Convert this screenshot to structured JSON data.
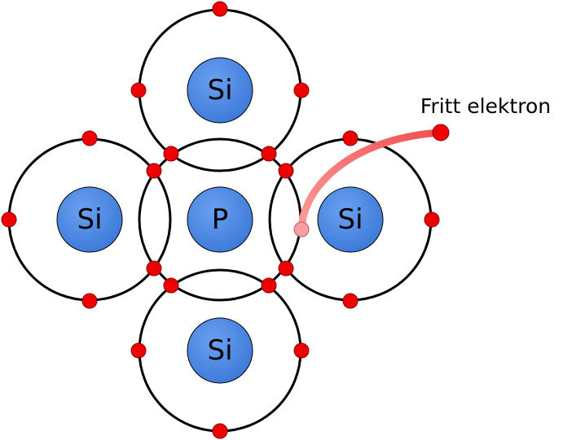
{
  "atoms": [
    {
      "id": "center",
      "symbol": "P"
    },
    {
      "id": "top",
      "symbol": "Si"
    },
    {
      "id": "left",
      "symbol": "Si"
    },
    {
      "id": "right",
      "symbol": "Si"
    },
    {
      "id": "bottom",
      "symbol": "Si"
    }
  ],
  "free_electron": {
    "label": "Fritt elektron"
  },
  "colors": {
    "nucleus_fill": "#3b78d8",
    "nucleus_highlight": "#6aa0f0",
    "electron": "#ee0000",
    "free_electron": "#f4a0a0",
    "free_path_start": "#ff9c9c",
    "free_path_end": "#f05050",
    "shell": "#000000"
  }
}
